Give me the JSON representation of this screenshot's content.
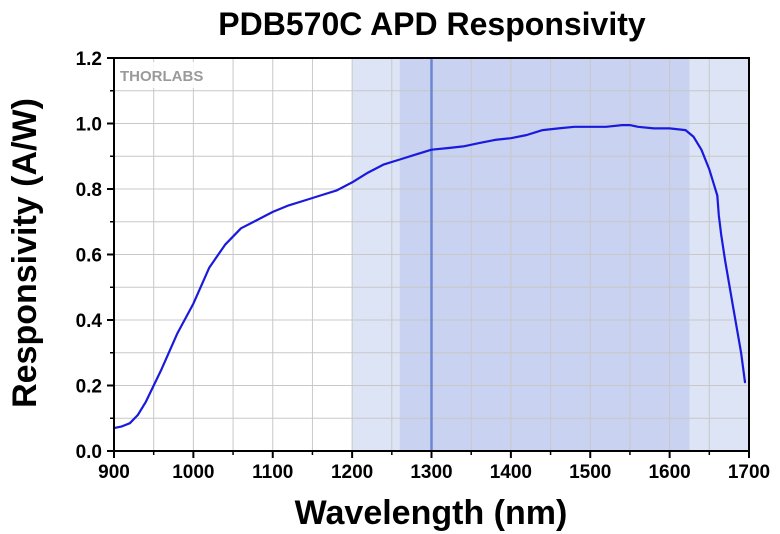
{
  "chart_data": {
    "type": "line",
    "title": "PDB570C APD Responsivity",
    "xlabel": "Wavelength (nm)",
    "ylabel": "Responsivity (A/W)",
    "xlim": [
      900,
      1700
    ],
    "ylim": [
      0.0,
      1.2
    ],
    "x_ticks": [
      900,
      1000,
      1100,
      1200,
      1300,
      1400,
      1500,
      1600,
      1700
    ],
    "y_ticks": [
      "0.0",
      "0.2",
      "0.4",
      "0.6",
      "0.8",
      "1.0",
      "1.2"
    ],
    "grid": true,
    "logo": "THORLABS",
    "colors": {
      "line": "#1a1adc",
      "outer_band": "#dce4f6",
      "inner_band": "#c9d2f0",
      "marker": "#6a88d0",
      "grid": "#c8c8c8"
    },
    "shaded_regions": [
      {
        "name": "outer-band",
        "x_start": 1200,
        "x_end": 1700
      },
      {
        "name": "inner-band",
        "x_start": 1260,
        "x_end": 1625
      }
    ],
    "vertical_marker": 1300,
    "series": [
      {
        "name": "Responsivity",
        "x": [
          900,
          910,
          920,
          930,
          940,
          960,
          980,
          1000,
          1020,
          1040,
          1060,
          1080,
          1100,
          1120,
          1140,
          1160,
          1180,
          1200,
          1220,
          1240,
          1260,
          1280,
          1300,
          1320,
          1340,
          1360,
          1380,
          1400,
          1420,
          1440,
          1460,
          1480,
          1500,
          1520,
          1540,
          1550,
          1560,
          1580,
          1600,
          1620,
          1630,
          1640,
          1650,
          1655,
          1660,
          1662,
          1665,
          1670,
          1680,
          1690,
          1695
        ],
        "y": [
          0.07,
          0.075,
          0.085,
          0.11,
          0.15,
          0.25,
          0.36,
          0.45,
          0.56,
          0.63,
          0.68,
          0.705,
          0.73,
          0.75,
          0.765,
          0.78,
          0.795,
          0.82,
          0.85,
          0.875,
          0.89,
          0.905,
          0.92,
          0.925,
          0.93,
          0.94,
          0.95,
          0.955,
          0.965,
          0.98,
          0.985,
          0.99,
          0.99,
          0.99,
          0.995,
          0.995,
          0.99,
          0.985,
          0.985,
          0.98,
          0.96,
          0.92,
          0.86,
          0.82,
          0.78,
          0.72,
          0.66,
          0.58,
          0.44,
          0.3,
          0.21
        ]
      }
    ]
  }
}
